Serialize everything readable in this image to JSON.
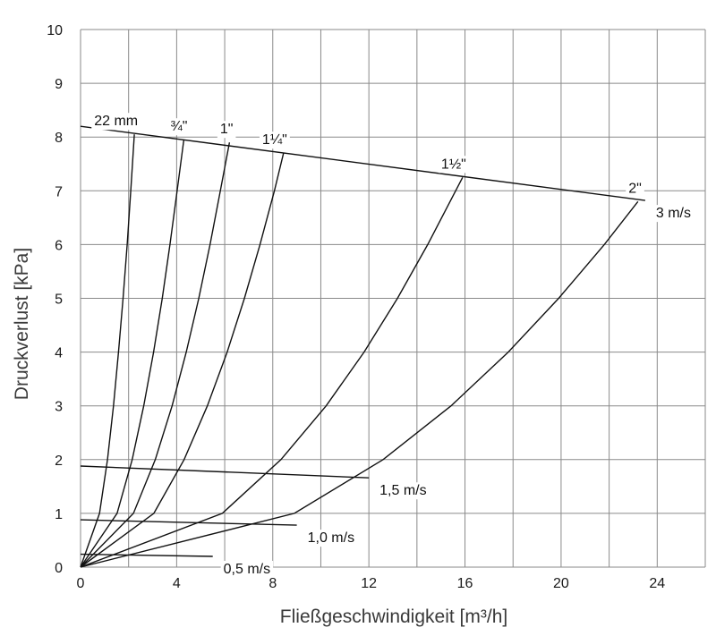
{
  "chart_data": {
    "type": "line",
    "title": "",
    "xlabel": "Fließgeschwindigkeit [m³/h]",
    "ylabel": "Druckverlust [kPa]",
    "xlim": [
      0,
      26
    ],
    "ylim": [
      0,
      10
    ],
    "x_ticks": [
      "0",
      "4",
      "8",
      "12",
      "16",
      "20",
      "24"
    ],
    "y_ticks": [
      "0",
      "1",
      "2",
      "3",
      "4",
      "5",
      "6",
      "7",
      "8",
      "9",
      "10"
    ],
    "grid": true,
    "series": [
      {
        "name": "22 mm",
        "points": [
          [
            0,
            0
          ],
          [
            0.79,
            1
          ],
          [
            1.12,
            2
          ],
          [
            1.37,
            3
          ],
          [
            1.58,
            4
          ],
          [
            1.77,
            5
          ],
          [
            1.94,
            6
          ],
          [
            2.09,
            7
          ],
          [
            2.24,
            8.05
          ]
        ]
      },
      {
        "name": "¾\"",
        "points": [
          [
            0,
            0
          ],
          [
            1.52,
            1
          ],
          [
            2.15,
            2
          ],
          [
            2.63,
            3
          ],
          [
            3.04,
            4
          ],
          [
            3.4,
            5
          ],
          [
            3.72,
            6
          ],
          [
            4.02,
            7
          ],
          [
            4.3,
            7.95
          ]
        ]
      },
      {
        "name": "1\"",
        "points": [
          [
            0,
            0
          ],
          [
            2.2,
            1
          ],
          [
            3.11,
            2
          ],
          [
            3.81,
            3
          ],
          [
            4.4,
            4
          ],
          [
            4.92,
            5
          ],
          [
            5.39,
            6
          ],
          [
            5.82,
            7
          ],
          [
            6.2,
            7.9
          ]
        ]
      },
      {
        "name": "1¼\"",
        "points": [
          [
            0,
            0
          ],
          [
            3.05,
            1
          ],
          [
            4.31,
            2
          ],
          [
            5.28,
            3
          ],
          [
            6.1,
            4
          ],
          [
            6.82,
            5
          ],
          [
            7.47,
            6
          ],
          [
            8.07,
            7
          ],
          [
            8.45,
            7.7
          ]
        ]
      },
      {
        "name": "1½\"",
        "points": [
          [
            0,
            0
          ],
          [
            5.9,
            1
          ],
          [
            8.34,
            2
          ],
          [
            10.22,
            3
          ],
          [
            11.8,
            4
          ],
          [
            13.19,
            5
          ],
          [
            14.45,
            6
          ],
          [
            15.61,
            7
          ],
          [
            15.9,
            7.25
          ]
        ]
      },
      {
        "name": "2\"",
        "points": [
          [
            0,
            0
          ],
          [
            8.9,
            1
          ],
          [
            12.59,
            2
          ],
          [
            15.42,
            3
          ],
          [
            17.8,
            4
          ],
          [
            19.9,
            5
          ],
          [
            21.8,
            6
          ],
          [
            23.2,
            6.8
          ]
        ]
      }
    ],
    "velocity_lines": [
      {
        "name": "3 m/s",
        "points": [
          [
            0,
            8.2
          ],
          [
            23.5,
            6.82
          ]
        ]
      },
      {
        "name": "1,5 m/s",
        "points": [
          [
            0,
            1.88
          ],
          [
            12.0,
            1.66
          ]
        ]
      },
      {
        "name": "1,0 m/s",
        "points": [
          [
            0,
            0.88
          ],
          [
            9.0,
            0.78
          ]
        ]
      },
      {
        "name": "0,5 m/s",
        "points": [
          [
            0,
            0.24
          ],
          [
            5.5,
            0.2
          ]
        ]
      }
    ]
  }
}
